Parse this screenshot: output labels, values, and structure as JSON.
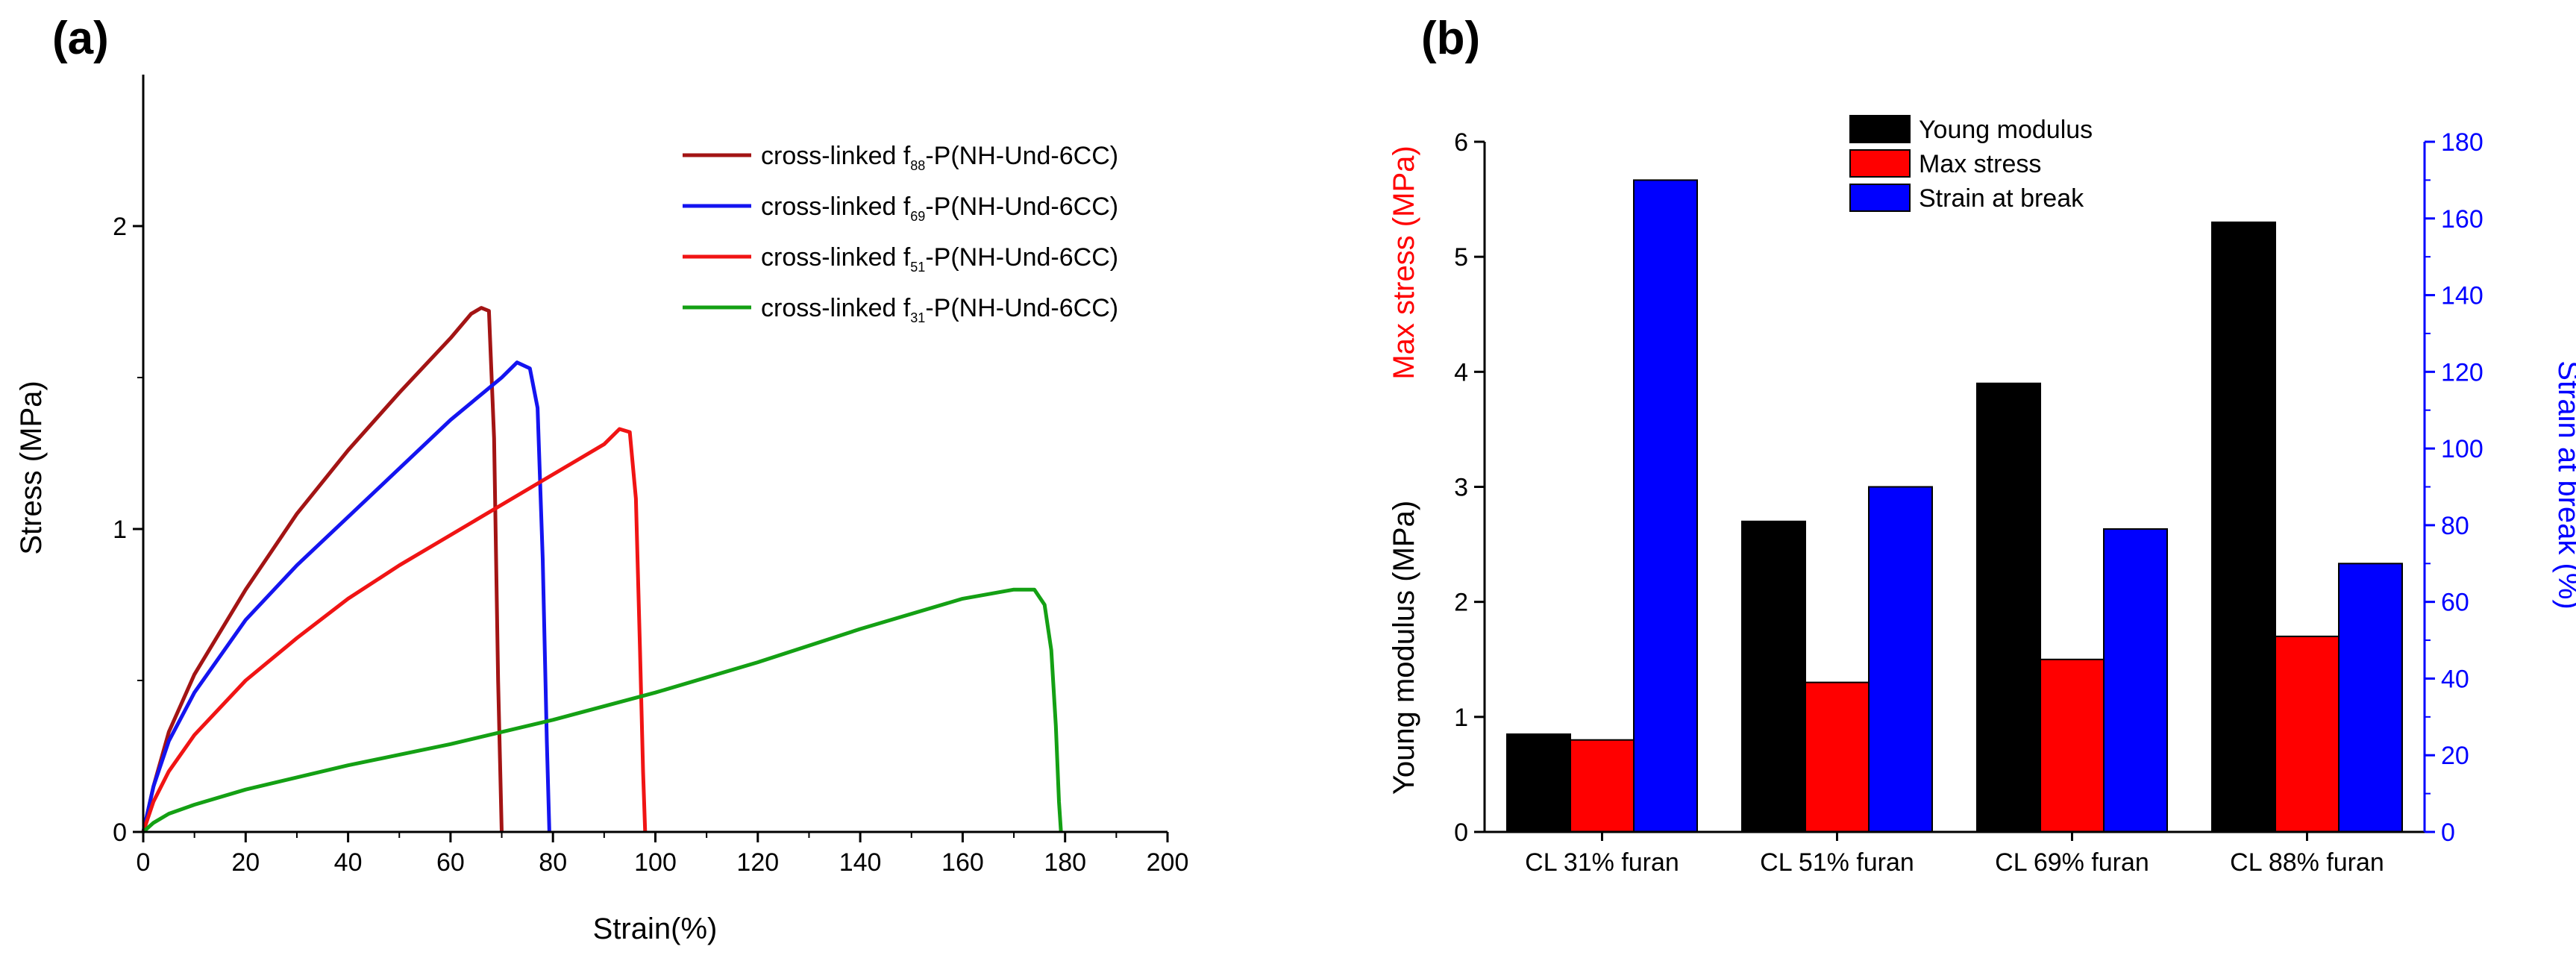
{
  "chart_data": [
    {
      "panel": "(a)",
      "type": "line",
      "xlabel": "Strain(%)",
      "ylabel": "Stress (MPa)",
      "xlim": [
        0,
        200
      ],
      "ylim": [
        0,
        2.5
      ],
      "xticks": [
        0,
        20,
        40,
        60,
        80,
        100,
        120,
        140,
        160,
        180,
        200
      ],
      "yticks": [
        0,
        1,
        2
      ],
      "legend_position": "top-right",
      "series": [
        {
          "name_main": "cross-linked f",
          "name_sub": "88",
          "name_suffix": "-P(NH-Und-6CC)",
          "color": "#a31414",
          "x": [
            0,
            2,
            5,
            10,
            20,
            30,
            40,
            50,
            60,
            64,
            66,
            67.5,
            68.5,
            69.3,
            70
          ],
          "y": [
            0,
            0.15,
            0.33,
            0.52,
            0.8,
            1.05,
            1.26,
            1.45,
            1.63,
            1.71,
            1.73,
            1.72,
            1.3,
            0.5,
            0
          ]
        },
        {
          "name_main": "cross-linked f",
          "name_sub": "69",
          "name_suffix": "-P(NH-Und-6CC)",
          "color": "#1414f0",
          "x": [
            0,
            2,
            5,
            10,
            20,
            30,
            40,
            50,
            60,
            70,
            73,
            75.5,
            77,
            78,
            78.8,
            79.3
          ],
          "y": [
            0,
            0.15,
            0.3,
            0.46,
            0.7,
            0.88,
            1.04,
            1.2,
            1.36,
            1.5,
            1.55,
            1.53,
            1.4,
            0.9,
            0.3,
            0
          ]
        },
        {
          "name_main": "cross-linked f",
          "name_sub": "51",
          "name_suffix": "-P(NH-Und-6CC)",
          "color": "#f01414",
          "x": [
            0,
            2,
            5,
            10,
            20,
            30,
            40,
            50,
            60,
            70,
            80,
            90,
            93,
            95,
            96.2,
            97,
            97.6,
            98
          ],
          "y": [
            0,
            0.1,
            0.2,
            0.32,
            0.5,
            0.64,
            0.77,
            0.88,
            0.98,
            1.08,
            1.18,
            1.28,
            1.33,
            1.32,
            1.1,
            0.6,
            0.2,
            0
          ]
        },
        {
          "name_main": "cross-linked f",
          "name_sub": "31",
          "name_suffix": "-P(NH-Und-6CC)",
          "color": "#14a014",
          "x": [
            0,
            2,
            5,
            10,
            20,
            40,
            60,
            80,
            100,
            120,
            140,
            160,
            170,
            174,
            176,
            177.3,
            178.2,
            178.8,
            179.2
          ],
          "y": [
            0,
            0.03,
            0.06,
            0.09,
            0.14,
            0.22,
            0.29,
            0.37,
            0.46,
            0.56,
            0.67,
            0.77,
            0.8,
            0.8,
            0.75,
            0.6,
            0.35,
            0.1,
            0
          ]
        }
      ]
    },
    {
      "panel": "(b)",
      "type": "bar",
      "categories": [
        "CL 31% furan",
        "CL 51% furan",
        "CL 69% furan",
        "CL 88% furan"
      ],
      "ylabel_left_black": "Young modulus (MPa)",
      "ylabel_left_red": "Max stress (MPa)",
      "ylabel_right": "Strain at break (%)",
      "ylim_left": [
        0,
        6
      ],
      "ylim_right": [
        0,
        180
      ],
      "yticks_left": [
        0,
        1,
        2,
        3,
        4,
        5,
        6
      ],
      "yticks_right": [
        0,
        20,
        40,
        60,
        80,
        100,
        120,
        140,
        160,
        180
      ],
      "legend_position": "top-center",
      "series": [
        {
          "name": "Young modulus",
          "color": "#000000",
          "axis": "left",
          "values": [
            0.85,
            2.7,
            3.9,
            5.3
          ]
        },
        {
          "name": "Max stress",
          "color": "#ff0000",
          "axis": "left",
          "values": [
            0.8,
            1.3,
            1.5,
            1.7
          ]
        },
        {
          "name": "Strain at break",
          "color": "#0000ff",
          "axis": "right",
          "values": [
            170,
            90,
            79,
            70
          ]
        }
      ]
    }
  ]
}
